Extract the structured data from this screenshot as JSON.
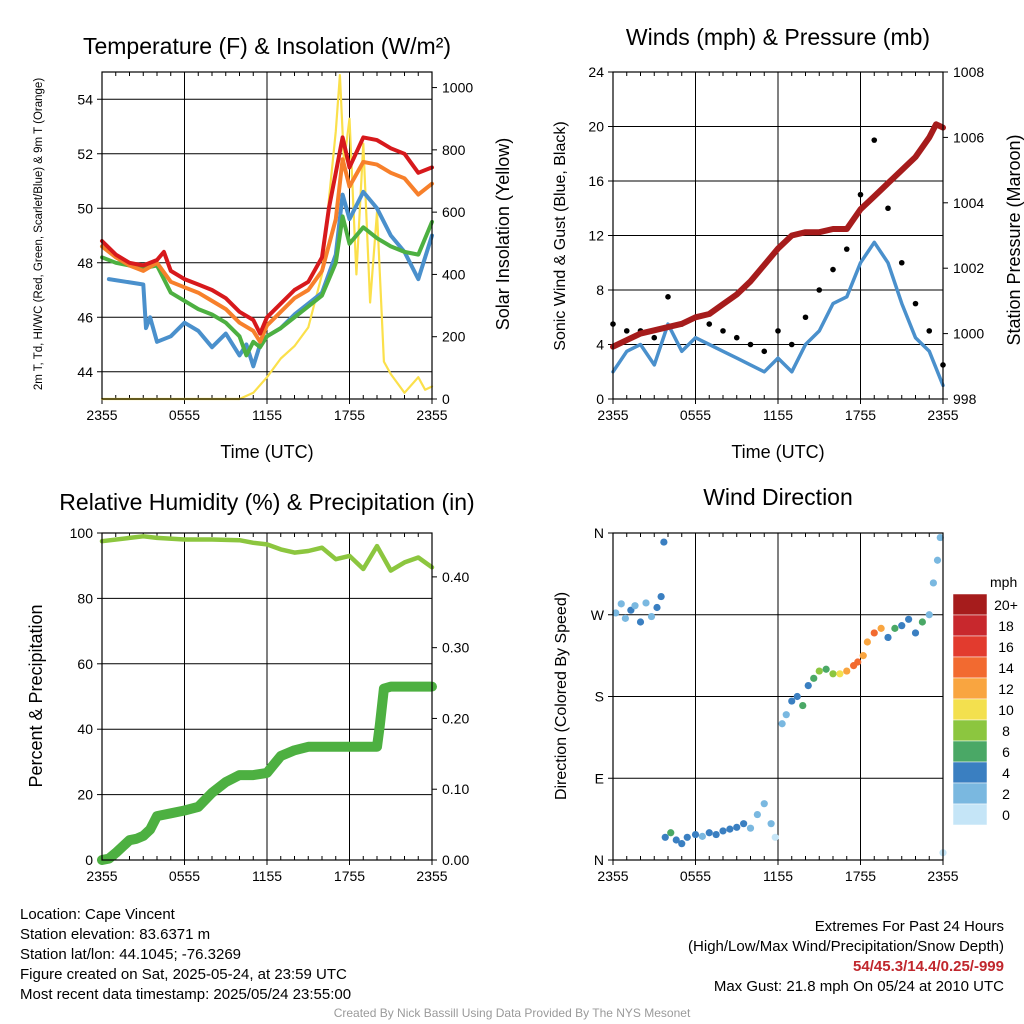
{
  "chart_data": [
    {
      "type": "line",
      "title": "Temperature (F) & Insolation (W/m²)",
      "xlabel": "Time (UTC)",
      "ylabel_left": "2m T, Td, HI/WC (Red, Green, Scarlet/Blue) & 9m T (Orange)",
      "ylabel_right": "Solar Insolation (Yellow)",
      "xticks": [
        "2355",
        "0555",
        "1155",
        "1755",
        "2355"
      ],
      "ylim_left": [
        43,
        55
      ],
      "yticks_left": [
        "44",
        "46",
        "48",
        "50",
        "52",
        "54"
      ],
      "ylim_right": [
        0,
        1050
      ],
      "yticks_right": [
        "0",
        "200",
        "400",
        "600",
        "800",
        "1000"
      ],
      "grid": true,
      "series": [
        {
          "color": "#d7191c",
          "x": [
            0,
            1,
            2,
            3,
            4,
            4.5,
            5,
            6,
            7,
            8,
            9,
            10,
            11,
            11.5,
            12,
            13,
            14,
            15,
            16,
            16.5,
            17,
            17.5,
            18,
            19,
            20,
            21,
            22,
            23,
            24
          ],
          "y": [
            48.8,
            48.3,
            48.0,
            47.9,
            48.1,
            48.4,
            47.7,
            47.4,
            47.2,
            47.0,
            46.7,
            46.2,
            45.9,
            45.4,
            46.0,
            46.5,
            47.0,
            47.3,
            48.2,
            50.0,
            51.3,
            52.6,
            51.5,
            52.6,
            52.5,
            52.2,
            52.0,
            51.3,
            51.5
          ]
        },
        {
          "color": "#f7802b",
          "x": [
            0,
            1,
            2,
            3,
            4,
            5,
            6,
            7,
            8,
            9,
            10,
            11,
            11.5,
            12,
            13,
            14,
            15,
            16,
            17,
            17.5,
            18,
            19,
            20,
            21,
            22,
            23,
            24
          ],
          "y": [
            48.6,
            48.2,
            47.9,
            47.7,
            48.0,
            47.3,
            47.1,
            46.9,
            46.6,
            46.3,
            45.8,
            45.5,
            45.1,
            45.7,
            46.2,
            46.7,
            47.0,
            47.7,
            49.6,
            51.8,
            50.8,
            51.7,
            51.6,
            51.3,
            51.1,
            50.5,
            50.9
          ]
        },
        {
          "color": "#4db041",
          "x": [
            0,
            1,
            2,
            3,
            4,
            5,
            6,
            7,
            8,
            9,
            10,
            10.5,
            11,
            11.5,
            12,
            13,
            14,
            15,
            16,
            17,
            17.5,
            18,
            19,
            20,
            21,
            22,
            23,
            24
          ],
          "y": [
            48.2,
            48.0,
            47.9,
            47.8,
            47.9,
            46.9,
            46.6,
            46.3,
            46.1,
            45.8,
            45.3,
            44.6,
            45.1,
            44.9,
            45.3,
            45.6,
            46.0,
            46.4,
            46.8,
            48.0,
            49.7,
            48.7,
            49.3,
            48.9,
            48.6,
            48.4,
            48.3,
            49.5
          ]
        },
        {
          "color": "#4a90cc",
          "x": [
            0.5,
            3,
            3.2,
            3.5,
            4,
            5,
            6,
            7,
            8,
            9,
            10,
            10.5,
            11,
            11.5,
            12,
            13,
            14,
            15,
            16,
            17,
            17.5,
            18,
            19,
            20,
            21,
            22,
            23,
            24
          ],
          "y": [
            47.4,
            47.2,
            45.6,
            46.0,
            45.1,
            45.3,
            45.8,
            45.5,
            44.9,
            45.4,
            44.6,
            45.0,
            44.2,
            45.0,
            45.3,
            45.6,
            46.1,
            46.5,
            46.9,
            48.3,
            50.5,
            49.6,
            50.6,
            50.0,
            49.0,
            48.4,
            47.4,
            49.0
          ]
        },
        {
          "color": "#fbe04b",
          "x": [
            0,
            10,
            11,
            12,
            13,
            14,
            15,
            16,
            16.5,
            17,
            17.3,
            17.6,
            18,
            18.5,
            19,
            19.5,
            20,
            20.5,
            21,
            22,
            23,
            23.5,
            24
          ],
          "y": [
            0,
            0,
            20,
            70,
            130,
            170,
            230,
            400,
            640,
            860,
            1040,
            760,
            900,
            400,
            820,
            310,
            600,
            120,
            80,
            20,
            70,
            30,
            40
          ]
        }
      ]
    },
    {
      "type": "line",
      "title": "Winds (mph) & Pressure (mb)",
      "xlabel": "Time (UTC)",
      "ylabel_left": "Sonic Wind & Gust (Blue, Black)",
      "ylabel_right": "Station Pressure (Maroon)",
      "xticks": [
        "2355",
        "0555",
        "1155",
        "1755",
        "2355"
      ],
      "ylim_left": [
        0,
        24
      ],
      "yticks_left": [
        "0",
        "4",
        "8",
        "12",
        "16",
        "20",
        "24"
      ],
      "ylim_right": [
        998,
        1008
      ],
      "yticks_right": [
        "998",
        "1000",
        "1002",
        "1004",
        "1006",
        "1008"
      ],
      "grid": true,
      "series": [
        {
          "color": "#4a90cc",
          "x": [
            0,
            1,
            2,
            3,
            4,
            5,
            6,
            7,
            8,
            9,
            10,
            11,
            12,
            13,
            14,
            15,
            16,
            17,
            18,
            19,
            20,
            21,
            22,
            23,
            24
          ],
          "y": [
            2.0,
            3.5,
            4.0,
            2.5,
            5.5,
            3.5,
            4.5,
            4.0,
            3.5,
            3.0,
            2.5,
            2.0,
            3.0,
            2.0,
            4.0,
            5.0,
            7.0,
            7.5,
            10.0,
            11.5,
            10.0,
            7.0,
            4.5,
            3.5,
            1.0
          ]
        },
        {
          "color": "#000000",
          "x": [
            0,
            1,
            2,
            3,
            4,
            5,
            6,
            7,
            8,
            9,
            10,
            11,
            12,
            13,
            14,
            15,
            16,
            17,
            18,
            19,
            20,
            21,
            22,
            23,
            24
          ],
          "y": [
            5.5,
            5.0,
            5.0,
            4.5,
            7.5,
            5.5,
            6.0,
            5.5,
            5.0,
            4.5,
            4.0,
            3.5,
            5.0,
            4.0,
            6.0,
            8.0,
            9.5,
            11.0,
            15.0,
            19.0,
            14.0,
            10.0,
            7.0,
            5.0,
            2.5
          ]
        },
        {
          "color": "#a61c1c",
          "x": [
            0,
            1,
            2,
            3,
            4,
            5,
            6,
            7,
            8,
            9,
            10,
            11,
            12,
            13,
            14,
            15,
            16,
            17,
            18,
            19,
            20,
            21,
            22,
            23,
            23.5,
            24
          ],
          "y": [
            999.6,
            999.8,
            1000.0,
            1000.1,
            1000.2,
            1000.3,
            1000.5,
            1000.6,
            1000.9,
            1001.2,
            1001.6,
            1002.1,
            1002.6,
            1003.0,
            1003.1,
            1003.1,
            1003.2,
            1003.2,
            1003.8,
            1004.2,
            1004.6,
            1005.0,
            1005.4,
            1006.0,
            1006.4,
            1006.3
          ]
        }
      ]
    },
    {
      "type": "line",
      "title": "Relative Humidity (%) & Precipitation (in)",
      "xlabel": "",
      "ylabel_left": "Percent & Precipitation",
      "xticks": [
        "2355",
        "0555",
        "1155",
        "1755",
        "2355"
      ],
      "ylim_left": [
        0,
        100
      ],
      "yticks_left": [
        "0",
        "20",
        "40",
        "60",
        "80",
        "100"
      ],
      "ylim_right": [
        0,
        0.462
      ],
      "yticks_right": [
        "0.00",
        "0.10",
        "0.20",
        "0.30",
        "0.40"
      ],
      "grid": true,
      "series": [
        {
          "color": "#8cc63f",
          "x": [
            0,
            2,
            3,
            4,
            6,
            8,
            10,
            11,
            12,
            13,
            14,
            15,
            16,
            17,
            18,
            19,
            20,
            21,
            22,
            23,
            24
          ],
          "y": [
            97.5,
            98.5,
            99.0,
            98.5,
            98.0,
            98.0,
            97.8,
            97.0,
            96.5,
            95.0,
            94.0,
            94.5,
            95.5,
            92.0,
            93.0,
            89.0,
            96.0,
            88.5,
            91.0,
            92.5,
            89.5
          ]
        },
        {
          "color": "#4db041",
          "x": [
            0,
            0.5,
            1,
            2,
            2.5,
            3,
            3.5,
            4,
            5,
            6,
            7,
            8,
            9,
            10,
            11,
            12,
            12.5,
            13,
            14,
            15,
            16,
            17,
            18,
            19,
            20,
            20.2,
            20.5,
            21,
            22,
            23,
            24
          ],
          "y": [
            0,
            0.002,
            0.01,
            0.028,
            0.03,
            0.034,
            0.043,
            0.062,
            0.066,
            0.07,
            0.075,
            0.095,
            0.11,
            0.12,
            0.12,
            0.123,
            0.135,
            0.147,
            0.155,
            0.16,
            0.16,
            0.16,
            0.16,
            0.16,
            0.16,
            0.19,
            0.242,
            0.245,
            0.245,
            0.245,
            0.245
          ]
        }
      ]
    },
    {
      "type": "scatter",
      "title": "Wind Direction",
      "ylabel": "Direction (Colored By Speed)",
      "xticks": [
        "2355",
        "0555",
        "1155",
        "1755",
        "2355"
      ],
      "yticks": [
        "N",
        "E",
        "S",
        "W",
        "N"
      ],
      "ylim": [
        0,
        360
      ],
      "grid": true,
      "legend": {
        "title": "mph",
        "position": "right",
        "labels": [
          "20+",
          "18",
          "16",
          "14",
          "12",
          "10",
          "8",
          "6",
          "4",
          "2",
          "0"
        ],
        "colors": [
          "#a61c1c",
          "#c8282d",
          "#e23b2e",
          "#f26a30",
          "#f9a540",
          "#f3e04e",
          "#8cc63f",
          "#4aa866",
          "#3a7fc1",
          "#7ab8e0",
          "#c5e5f7"
        ]
      },
      "points": [
        [
          0.2,
          272,
          2
        ],
        [
          0.6,
          282,
          2
        ],
        [
          0.9,
          266,
          2
        ],
        [
          1.3,
          275,
          4
        ],
        [
          1.6,
          280,
          2
        ],
        [
          2.0,
          262,
          4
        ],
        [
          2.4,
          283,
          2
        ],
        [
          2.8,
          268,
          2
        ],
        [
          3.2,
          278,
          4
        ],
        [
          3.5,
          290,
          4
        ],
        [
          3.7,
          350,
          4
        ],
        [
          3.8,
          25,
          4
        ],
        [
          4.2,
          30,
          6
        ],
        [
          4.6,
          22,
          4
        ],
        [
          5.0,
          18,
          4
        ],
        [
          5.4,
          25,
          4
        ],
        [
          6.0,
          28,
          4
        ],
        [
          6.5,
          26,
          2
        ],
        [
          7.0,
          30,
          4
        ],
        [
          7.5,
          28,
          4
        ],
        [
          8.0,
          32,
          4
        ],
        [
          8.5,
          34,
          4
        ],
        [
          9.0,
          36,
          4
        ],
        [
          9.5,
          40,
          4
        ],
        [
          10.0,
          35,
          2
        ],
        [
          10.5,
          50,
          2
        ],
        [
          11.0,
          62,
          2
        ],
        [
          11.5,
          40,
          2
        ],
        [
          11.8,
          25,
          0
        ],
        [
          12.3,
          150,
          2
        ],
        [
          12.6,
          160,
          2
        ],
        [
          13.0,
          175,
          4
        ],
        [
          13.4,
          180,
          4
        ],
        [
          13.8,
          170,
          6
        ],
        [
          14.2,
          192,
          4
        ],
        [
          14.6,
          200,
          6
        ],
        [
          15.0,
          208,
          8
        ],
        [
          15.5,
          210,
          6
        ],
        [
          16.0,
          205,
          8
        ],
        [
          16.5,
          205,
          10
        ],
        [
          17.0,
          208,
          12
        ],
        [
          17.5,
          214,
          14
        ],
        [
          17.8,
          218,
          14
        ],
        [
          18.2,
          225,
          12
        ],
        [
          18.5,
          240,
          12
        ],
        [
          19.0,
          250,
          14
        ],
        [
          19.5,
          255,
          12
        ],
        [
          20.0,
          245,
          4
        ],
        [
          20.5,
          255,
          6
        ],
        [
          21.0,
          258,
          4
        ],
        [
          21.5,
          265,
          4
        ],
        [
          22.0,
          250,
          4
        ],
        [
          22.5,
          262,
          6
        ],
        [
          23.0,
          270,
          2
        ],
        [
          23.3,
          305,
          2
        ],
        [
          23.6,
          330,
          2
        ],
        [
          23.8,
          355,
          2
        ],
        [
          24.0,
          8,
          0
        ]
      ]
    }
  ],
  "footer": {
    "location": "Location: Cape Vincent",
    "elevation": "Station elevation: 83.6371 m",
    "latlon": "Station lat/lon: 44.1045; -76.3269",
    "created": "Figure created on Sat, 2025-05-24, at 23:59 UTC",
    "recent": "Most recent data timestamp: 2025/05/24 23:55:00",
    "extremes_title": "Extremes For Past 24 Hours",
    "extremes_legend": "(High/Low/Max Wind/Precipitation/Snow Depth)",
    "extremes_values": "54/45.3/14.4/0.25/-999",
    "max_gust": "Max Gust: 21.8 mph On 05/24 at 2010 UTC",
    "credit": "Created By Nick Bassill Using Data Provided By The NYS Mesonet"
  }
}
